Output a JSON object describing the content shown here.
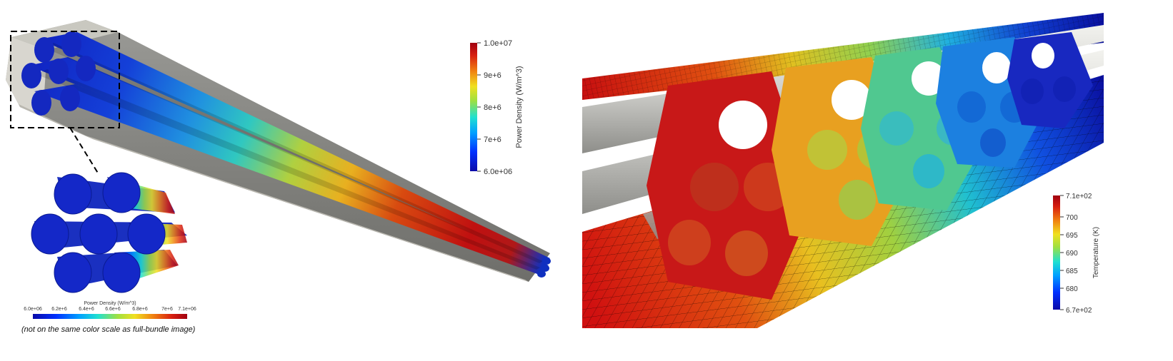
{
  "left_panel": {
    "colorbar": {
      "title": "Power Density (W/m^3)",
      "ticks": [
        "1.0e+07",
        "9e+6",
        "8e+6",
        "7e+6",
        "6.0e+06"
      ]
    },
    "inset": {
      "colorbar": {
        "title": "Power Density (W/m^3)",
        "ticks": [
          "6.0e+06",
          "6.2e+6",
          "6.4e+6",
          "6.6e+6",
          "6.8e+6",
          "7e+6",
          "7.1e+06"
        ]
      },
      "caption": "(not on the same color scale as full-bundle image)"
    }
  },
  "right_panel": {
    "colorbar": {
      "title": "Temperature (K)",
      "ticks": [
        "7.1e+02",
        "700",
        "695",
        "690",
        "685",
        "680",
        "6.7e+02"
      ]
    }
  },
  "colors": {
    "duct_gray": "#8a8a86",
    "duct_light": "#d8d6cf",
    "pin_base": "#1530b8",
    "hot": "#c01010",
    "cold": "#0a10a0"
  }
}
